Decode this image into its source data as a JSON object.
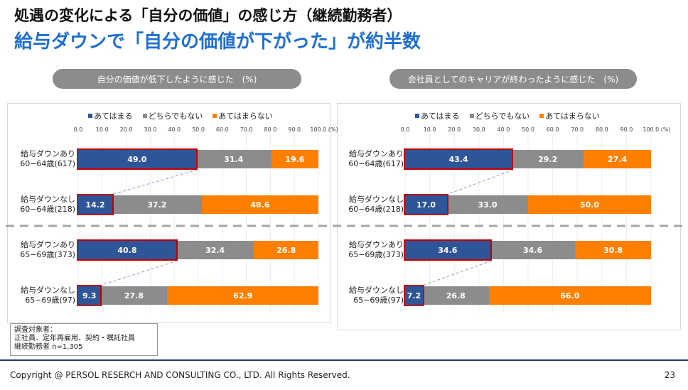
{
  "header": {
    "title": "処遇の変化による「自分の価値」の感じ方（継続勤務者）",
    "subtitle": "給与ダウンで「自分の価値が下がった」が約半数"
  },
  "legend": {
    "items": [
      {
        "label": "あてはまる",
        "color": "#2e5597"
      },
      {
        "label": "どちらでもない",
        "color": "#8c8c8c"
      },
      {
        "label": "あてはまらない",
        "color": "#ff7f00"
      }
    ]
  },
  "axis_ticks": [
    "0.0",
    "10.0",
    "20.0",
    "30.0",
    "40.0",
    "50.0",
    "60.0",
    "70.0",
    "80.0",
    "90.0",
    "100.0 (%)"
  ],
  "chart_data": [
    {
      "type": "bar",
      "stacked": true,
      "orientation": "horizontal",
      "title": "自分の価値が低下したように感じた　(%)",
      "xlim": [
        0,
        100
      ],
      "categories": [
        [
          "給与ダウンあり",
          "60−64歳(617)"
        ],
        [
          "給与ダウンなし",
          "60−64歳(218)"
        ],
        [
          "給与ダウンあり",
          "65−69歳(373)"
        ],
        [
          "給与ダウンなし",
          "65−69歳(97)"
        ]
      ],
      "series": [
        {
          "name": "あてはまる",
          "values": [
            49.0,
            14.2,
            40.8,
            9.3
          ]
        },
        {
          "name": "どちらでもない",
          "values": [
            31.4,
            37.2,
            32.4,
            27.8
          ]
        },
        {
          "name": "あてはまらない",
          "values": [
            19.6,
            48.6,
            26.8,
            62.9
          ]
        }
      ],
      "labels": [
        [
          "49.0",
          "14.2",
          "40.8",
          "9.3"
        ],
        [
          "31.4",
          "37.2",
          "32.4",
          "27.8"
        ],
        [
          "19.6",
          "48.6",
          "26.8",
          "62.9"
        ]
      ]
    },
    {
      "type": "bar",
      "stacked": true,
      "orientation": "horizontal",
      "title": "会社員としてのキャリアが終わったように感じた　(%)",
      "xlim": [
        0,
        100
      ],
      "categories": [
        [
          "給与ダウンあり",
          "60−64歳(617)"
        ],
        [
          "給与ダウンなし",
          "60−64歳(218)"
        ],
        [
          "給与ダウンあり",
          "65−69歳(373)"
        ],
        [
          "給与ダウンなし",
          "65−69歳(97)"
        ]
      ],
      "series": [
        {
          "name": "あてはまる",
          "values": [
            43.4,
            17.0,
            34.6,
            7.2
          ]
        },
        {
          "name": "どちらでもない",
          "values": [
            29.2,
            33.0,
            34.6,
            26.8
          ]
        },
        {
          "name": "あてはまらない",
          "values": [
            27.4,
            50.0,
            30.8,
            66.0
          ]
        }
      ],
      "labels": [
        [
          "43.4",
          "17.0",
          "34.6",
          "7.2"
        ],
        [
          "29.2",
          "33.0",
          "34.6",
          "26.8"
        ],
        [
          "27.4",
          "50.0",
          "30.8",
          "66.0"
        ]
      ]
    }
  ],
  "note": {
    "line1": "調査対象者：",
    "line2": "正社員、定年再雇用、契約・嘱託社員",
    "line3": "継続勤務者 n=1,305"
  },
  "footer": {
    "copyright": "Copyright @ PERSOL RESERCH AND CONSULTING CO., LTD. All Rights Reserved.",
    "page": "23"
  },
  "colors": {
    "agree": "#2e5597",
    "neutral": "#8c8c8c",
    "disagree": "#ff7f00",
    "highlight": "#c00000",
    "subtitle": "#1f6fd1"
  }
}
